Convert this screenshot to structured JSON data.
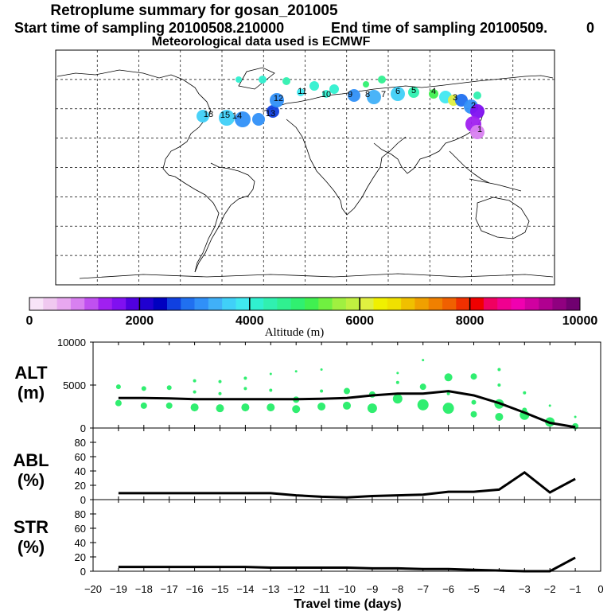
{
  "header": {
    "title": "Retroplume summary for gosan_201005",
    "start_label": "Start time of sampling 20100508.210000",
    "end_label": "End time of sampling 20100509.",
    "end_suffix": "0",
    "met_label": "Meteorological data used is ECMWF"
  },
  "colorbar": {
    "xlabel": "Altitude (m)",
    "tick_labels": [
      "0",
      "2000",
      "4000",
      "6000",
      "8000",
      "10000"
    ],
    "colors": [
      "#f8e4f8",
      "#f0c8f0",
      "#e8a8f0",
      "#d880f0",
      "#c050f0",
      "#a020f0",
      "#8010f0",
      "#5000e0",
      "#2000d0",
      "#0000c0",
      "#1040e0",
      "#2070f0",
      "#3090f8",
      "#40b0f8",
      "#40d0f8",
      "#40e8f0",
      "#30f0d0",
      "#30f0b0",
      "#30f090",
      "#30f070",
      "#40f050",
      "#70f040",
      "#a0f040",
      "#c0f040",
      "#e0f040",
      "#f0f000",
      "#f0e000",
      "#f0c000",
      "#f0a000",
      "#f08000",
      "#f06000",
      "#f03000",
      "#f00000",
      "#f00060",
      "#f00090",
      "#f000b0",
      "#d000a0",
      "#b00090",
      "#900080",
      "#700070"
    ]
  },
  "map_labels": [
    "18",
    "15",
    "14",
    "13",
    "12",
    "11",
    "10",
    "9",
    "8",
    "7",
    "6",
    "5",
    "4",
    "3",
    "2",
    "1"
  ],
  "chart_data": [
    {
      "type": "line",
      "panel": "ALT",
      "ylabel_line1": "ALT",
      "ylabel_line2": "(m)",
      "ylim": [
        0,
        10000
      ],
      "yticks": [
        "0",
        "5000",
        "10000"
      ],
      "x": [
        -19,
        -18,
        -17,
        -16,
        -15,
        -14,
        -13,
        -12,
        -11,
        -10,
        -9,
        -8,
        -7,
        -6,
        -5,
        -4,
        -3,
        -2,
        -1
      ],
      "values": [
        3500,
        3500,
        3450,
        3350,
        3350,
        3350,
        3350,
        3350,
        3400,
        3500,
        3800,
        4000,
        4000,
        4300,
        3800,
        2900,
        1800,
        600,
        100
      ],
      "scatter": [
        [
          -19,
          4800,
          3
        ],
        [
          -19,
          2900,
          4
        ],
        [
          -18,
          4600,
          3
        ],
        [
          -18,
          2600,
          4
        ],
        [
          -17,
          4700,
          3
        ],
        [
          -17,
          2600,
          4
        ],
        [
          -16,
          5500,
          2
        ],
        [
          -16,
          4200,
          2
        ],
        [
          -16,
          2400,
          5
        ],
        [
          -15,
          5400,
          2
        ],
        [
          -15,
          4000,
          2
        ],
        [
          -15,
          2300,
          5
        ],
        [
          -14,
          5800,
          2
        ],
        [
          -14,
          4600,
          2
        ],
        [
          -14,
          2400,
          5
        ],
        [
          -13,
          6300,
          1.5
        ],
        [
          -13,
          4400,
          2
        ],
        [
          -13,
          2400,
          5
        ],
        [
          -12,
          6600,
          1.5
        ],
        [
          -12,
          3300,
          4
        ],
        [
          -12,
          2200,
          5
        ],
        [
          -11,
          6800,
          1.5
        ],
        [
          -11,
          4300,
          2
        ],
        [
          -11,
          2500,
          5
        ],
        [
          -10,
          4300,
          4
        ],
        [
          -10,
          2600,
          5
        ],
        [
          -9,
          3900,
          4
        ],
        [
          -9,
          2300,
          6
        ],
        [
          -8,
          6400,
          1.5
        ],
        [
          -8,
          5300,
          2
        ],
        [
          -8,
          3400,
          6
        ],
        [
          -7,
          7900,
          1.5
        ],
        [
          -7,
          4800,
          4
        ],
        [
          -7,
          2700,
          7
        ],
        [
          -6,
          5900,
          5
        ],
        [
          -6,
          4000,
          2
        ],
        [
          -6,
          2300,
          7
        ],
        [
          -5,
          6000,
          4
        ],
        [
          -5,
          3000,
          3
        ],
        [
          -5,
          1600,
          4
        ],
        [
          -4,
          6800,
          2
        ],
        [
          -4,
          5000,
          2
        ],
        [
          -4,
          2800,
          6
        ],
        [
          -4,
          1300,
          5
        ],
        [
          -3,
          4100,
          2
        ],
        [
          -3,
          2100,
          3
        ],
        [
          -3,
          1500,
          6
        ],
        [
          -2,
          2600,
          1.5
        ],
        [
          -2,
          700,
          6
        ],
        [
          -1,
          1300,
          1.5
        ],
        [
          -1,
          200,
          4
        ]
      ]
    },
    {
      "type": "line",
      "panel": "ABL",
      "ylabel_line1": "ABL",
      "ylabel_line2": "(%)",
      "ylim": [
        0,
        100
      ],
      "yticks": [
        "0",
        "20",
        "40",
        "60",
        "80"
      ],
      "x": [
        -19,
        -18,
        -17,
        -16,
        -15,
        -14,
        -13,
        -12,
        -11,
        -10,
        -9,
        -8,
        -7,
        -6,
        -5,
        -4,
        -3,
        -2,
        -1
      ],
      "values": [
        9,
        9,
        9,
        9,
        9,
        9,
        9,
        6,
        4,
        3,
        5,
        6,
        7,
        11,
        11,
        14,
        38,
        10,
        29
      ]
    },
    {
      "type": "line",
      "panel": "STR",
      "ylabel_line1": "STR",
      "ylabel_line2": "(%)",
      "ylim": [
        0,
        100
      ],
      "yticks": [
        "0",
        "20",
        "40",
        "60",
        "80"
      ],
      "x": [
        -19,
        -18,
        -17,
        -16,
        -15,
        -14,
        -13,
        -12,
        -11,
        -10,
        -9,
        -8,
        -7,
        -6,
        -5,
        -4,
        -3,
        -2,
        -1
      ],
      "values": [
        6,
        6,
        6,
        6,
        6,
        6,
        5,
        5,
        5,
        5,
        4,
        4,
        3,
        3,
        2,
        1,
        0,
        0,
        19
      ]
    }
  ],
  "xaxis": {
    "xlabel": "Travel time (days)",
    "xlim": [
      -20,
      0
    ],
    "tick_labels": [
      "−20",
      "−19",
      "−18",
      "−17",
      "−16",
      "−15",
      "−14",
      "−13",
      "−12",
      "−11",
      "−10",
      "−9",
      "−8",
      "−7",
      "−6",
      "−5",
      "−4",
      "−3",
      "−2",
      "−1",
      "0"
    ]
  }
}
